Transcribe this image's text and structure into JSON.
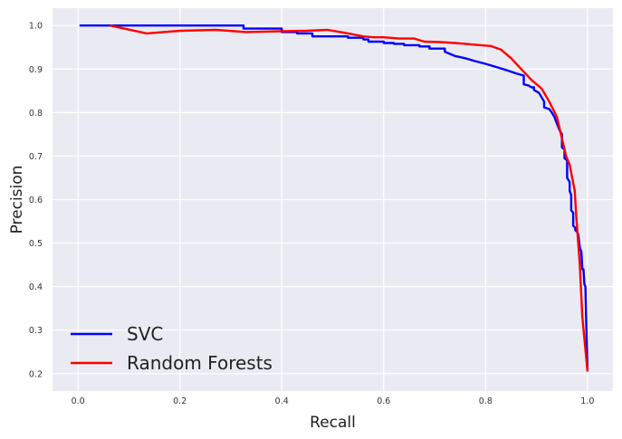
{
  "chart_data": {
    "type": "line",
    "title": "",
    "xlabel": "Recall",
    "ylabel": "Precision",
    "xlim": [
      -0.05,
      1.05
    ],
    "ylim": [
      0.16,
      1.04
    ],
    "xticks": [
      "0.0",
      "0.2",
      "0.4",
      "0.6",
      "0.8",
      "1.0"
    ],
    "yticks": [
      "0.2",
      "0.3",
      "0.4",
      "0.5",
      "0.6",
      "0.7",
      "0.8",
      "0.9",
      "1.0"
    ],
    "grid": true,
    "legend_position": "lower-left",
    "series": [
      {
        "name": "SVC",
        "color": "#0000ff",
        "x": [
          0.003,
          0.325,
          0.325,
          0.4,
          0.4,
          0.43,
          0.43,
          0.46,
          0.46,
          0.53,
          0.53,
          0.56,
          0.56,
          0.57,
          0.57,
          0.6,
          0.6,
          0.62,
          0.62,
          0.64,
          0.64,
          0.67,
          0.67,
          0.69,
          0.69,
          0.72,
          0.72,
          0.73,
          0.74,
          0.76,
          0.78,
          0.8,
          0.82,
          0.84,
          0.86,
          0.875,
          0.875,
          0.885,
          0.89,
          0.895,
          0.895,
          0.905,
          0.915,
          0.915,
          0.925,
          0.93,
          0.935,
          0.94,
          0.945,
          0.95,
          0.95,
          0.955,
          0.955,
          0.96,
          0.96,
          0.965,
          0.965,
          0.968,
          0.968,
          0.972,
          0.972,
          0.976,
          0.976,
          0.98,
          0.982,
          0.985,
          0.988,
          0.99,
          0.992,
          0.994,
          0.996,
          0.998,
          1.0
        ],
        "y": [
          1.0,
          1.0,
          0.993,
          0.993,
          0.985,
          0.985,
          0.982,
          0.982,
          0.975,
          0.975,
          0.972,
          0.972,
          0.968,
          0.968,
          0.963,
          0.963,
          0.96,
          0.96,
          0.958,
          0.958,
          0.955,
          0.955,
          0.952,
          0.952,
          0.947,
          0.947,
          0.94,
          0.935,
          0.93,
          0.925,
          0.918,
          0.912,
          0.905,
          0.898,
          0.89,
          0.885,
          0.865,
          0.862,
          0.858,
          0.858,
          0.852,
          0.845,
          0.825,
          0.812,
          0.808,
          0.8,
          0.79,
          0.775,
          0.76,
          0.75,
          0.72,
          0.715,
          0.695,
          0.69,
          0.65,
          0.64,
          0.62,
          0.61,
          0.575,
          0.57,
          0.54,
          0.535,
          0.53,
          0.525,
          0.52,
          0.49,
          0.48,
          0.44,
          0.44,
          0.405,
          0.4,
          0.3,
          0.205
        ]
      },
      {
        "name": "Random Forests",
        "color": "#ff0000",
        "x": [
          0.063,
          0.135,
          0.2,
          0.27,
          0.33,
          0.4,
          0.45,
          0.49,
          0.53,
          0.56,
          0.58,
          0.6,
          0.63,
          0.66,
          0.68,
          0.71,
          0.74,
          0.77,
          0.79,
          0.81,
          0.83,
          0.85,
          0.87,
          0.89,
          0.91,
          0.925,
          0.94,
          0.95,
          0.958,
          0.965,
          0.975,
          0.978,
          0.985,
          0.99,
          1.0
        ],
        "y": [
          1.0,
          0.982,
          0.988,
          0.99,
          0.985,
          0.987,
          0.988,
          0.99,
          0.982,
          0.975,
          0.973,
          0.973,
          0.97,
          0.97,
          0.963,
          0.962,
          0.96,
          0.957,
          0.955,
          0.953,
          0.945,
          0.925,
          0.9,
          0.875,
          0.855,
          0.825,
          0.79,
          0.74,
          0.7,
          0.68,
          0.62,
          0.56,
          0.45,
          0.33,
          0.205
        ]
      }
    ]
  }
}
